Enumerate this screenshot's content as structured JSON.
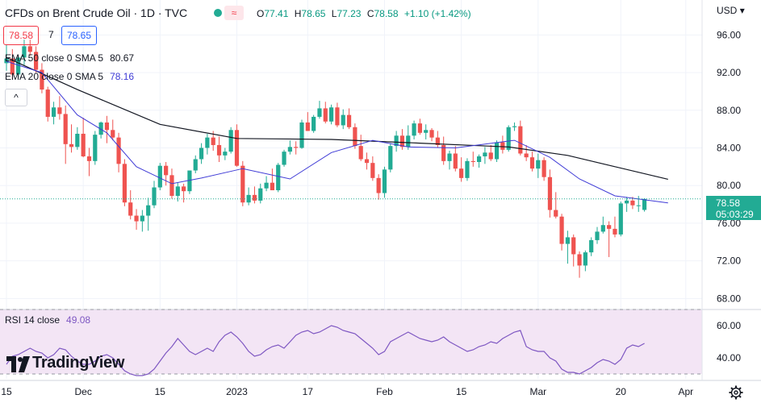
{
  "header": {
    "symbol_title": "CFDs on Brent Crude Oil · 1D · TVC",
    "ohlc": {
      "o_label": "O",
      "o": "77.41",
      "h_label": "H",
      "h": "78.65",
      "l_label": "L",
      "l": "77.23",
      "c_label": "C",
      "c": "78.58",
      "change": "+1.10 (+1.42%)"
    },
    "sell": "78.58",
    "spread": "7",
    "buy": "78.65",
    "status_icon": "market-open-dot",
    "compare_icon": "≈",
    "currency": "USD",
    "currency_chevron": "▾"
  },
  "indicators": [
    {
      "label": "EMA 50 close 0 SMA 5",
      "value": "80.67",
      "color": "#131722"
    },
    {
      "label": "EMA 20 close 0 SMA 5",
      "value": "78.16",
      "color": "#3f3bd6"
    }
  ],
  "collapse_icon": "^",
  "price_tag": {
    "price": "78.58",
    "countdown": "05:03:29",
    "color": "#22ab94"
  },
  "rsi": {
    "label": "RSI 14 close",
    "value": "49.08",
    "color": "#7e57c2"
  },
  "branding": {
    "name": "TradingView"
  },
  "colors": {
    "up": "#22ab94",
    "down": "#ef5350",
    "ema50": "#131722",
    "ema20": "#3f3bd6",
    "rsi": "#7e57c2",
    "rsi_band": "#f3e5f5"
  },
  "chart_data": [
    {
      "type": "candlestick",
      "title": "CFDs on Brent Crude Oil · 1D · TVC",
      "ylim": [
        67,
        98
      ],
      "ytick_labels": [
        "96.00",
        "92.00",
        "88.00",
        "84.00",
        "80.00",
        "76.00",
        "72.00",
        "68.00"
      ],
      "yticks": [
        96,
        92,
        88,
        84,
        80,
        76,
        72,
        68
      ],
      "xtick_labels": [
        "15",
        "Dec",
        "15",
        "2023",
        "17",
        "Feb",
        "15",
        "Mar",
        "20",
        "Apr"
      ],
      "xtick_index": [
        0,
        13,
        26,
        39,
        51,
        64,
        77,
        90,
        104,
        115
      ],
      "ohlc": [
        [
          93,
          95,
          92.2,
          93.5
        ],
        [
          93.5,
          94.5,
          91.3,
          91.8
        ],
        [
          91.8,
          93.8,
          91.5,
          93.6
        ],
        [
          93.6,
          95.5,
          92.8,
          94.8
        ],
        [
          94.8,
          95.5,
          93.8,
          94.2
        ],
        [
          94.2,
          94.8,
          92,
          92.3
        ],
        [
          92.3,
          93,
          89.8,
          90.2
        ],
        [
          90.2,
          90.5,
          86.8,
          87.3
        ],
        [
          87.3,
          88.9,
          86.5,
          88.3
        ],
        [
          88.3,
          89.5,
          87,
          87.6
        ],
        [
          87.6,
          88.5,
          82.3,
          84.4
        ],
        [
          84.4,
          86.5,
          83.5,
          84.1
        ],
        [
          84.1,
          86.2,
          83.8,
          85.5
        ],
        [
          85.5,
          87.2,
          83,
          83.1
        ],
        [
          83.1,
          84,
          81,
          82.6
        ],
        [
          82.6,
          85.8,
          82.2,
          85.4
        ],
        [
          85.4,
          86.8,
          85,
          86.7
        ],
        [
          86.7,
          87.4,
          84.5,
          85.9
        ],
        [
          85.9,
          87,
          84.8,
          85.1
        ],
        [
          85.1,
          85.6,
          81.4,
          82.3
        ],
        [
          82.3,
          82.8,
          77.8,
          78.2
        ],
        [
          78.2,
          79.5,
          76.4,
          76.8
        ],
        [
          76.8,
          77.5,
          75.3,
          76.2
        ],
        [
          76.2,
          77.4,
          75.1,
          76.8
        ],
        [
          76.8,
          78.7,
          75.2,
          77.9
        ],
        [
          77.9,
          80.5,
          77.6,
          79.8
        ],
        [
          79.8,
          82.4,
          79.5,
          82.1
        ],
        [
          82.1,
          82.5,
          80,
          81.1
        ],
        [
          81.1,
          81.8,
          78.6,
          78.9
        ],
        [
          78.9,
          80.3,
          78.3,
          79.9
        ],
        [
          79.9,
          80.2,
          78.2,
          79.4
        ],
        [
          79.4,
          81.5,
          79.1,
          81.6
        ],
        [
          81.6,
          83.2,
          81.3,
          82.8
        ],
        [
          82.8,
          84.5,
          82.3,
          84
        ],
        [
          84,
          85.5,
          83.3,
          85.1
        ],
        [
          85.1,
          85.8,
          83.7,
          84.3
        ],
        [
          84.3,
          85.2,
          82.5,
          83.2
        ],
        [
          83.2,
          84,
          82.7,
          83.6
        ],
        [
          83.6,
          86.2,
          83.4,
          85.9
        ],
        [
          85.9,
          86.5,
          82,
          82.1
        ],
        [
          82.1,
          82.6,
          77.8,
          78.2
        ],
        [
          78.2,
          79.8,
          77.9,
          79
        ],
        [
          79,
          79.9,
          78.1,
          78.4
        ],
        [
          78.4,
          80.2,
          78.1,
          79.7
        ],
        [
          79.7,
          81,
          79.4,
          80.3
        ],
        [
          80.3,
          81.8,
          79.5,
          79.5
        ],
        [
          79.5,
          82.4,
          79.3,
          82.2
        ],
        [
          82.2,
          83.8,
          82,
          83.6
        ],
        [
          83.6,
          84.8,
          83.3,
          84.1
        ],
        [
          84.1,
          84.7,
          83.3,
          84
        ],
        [
          84,
          87,
          83.9,
          86.7
        ],
        [
          86.7,
          87.8,
          85.8,
          85.8
        ],
        [
          85.8,
          87.5,
          85.6,
          87.3
        ],
        [
          87.3,
          89,
          87.1,
          88.2
        ],
        [
          88.2,
          88.9,
          86.6,
          86.8
        ],
        [
          86.8,
          88.6,
          86.5,
          88.3
        ],
        [
          88.3,
          88.8,
          86.2,
          86.4
        ],
        [
          86.4,
          88.1,
          86,
          87.5
        ],
        [
          87.5,
          88.2,
          86,
          86.2
        ],
        [
          86.2,
          86.6,
          83.9,
          84.2
        ],
        [
          84.2,
          85.4,
          82.6,
          82.8
        ],
        [
          82.8,
          83.5,
          81.7,
          82.4
        ],
        [
          82.4,
          83.1,
          80.5,
          80.8
        ],
        [
          80.8,
          81.2,
          78.5,
          79.2
        ],
        [
          79.2,
          82,
          78.7,
          81.7
        ],
        [
          81.7,
          84.5,
          81.4,
          84.2
        ],
        [
          84.2,
          85.8,
          83.6,
          85.3
        ],
        [
          85.3,
          86,
          83.8,
          84.1
        ],
        [
          84.1,
          86.4,
          83.8,
          85.3
        ],
        [
          85.3,
          86.9,
          84.9,
          86.6
        ],
        [
          86.6,
          87.1,
          85.4,
          85.6
        ],
        [
          85.6,
          86.5,
          84.9,
          85.9
        ],
        [
          85.9,
          86.1,
          84.7,
          85.1
        ],
        [
          85.1,
          85.8,
          84,
          84.3
        ],
        [
          84.3,
          85.2,
          82.2,
          82.6
        ],
        [
          82.6,
          83.7,
          81.7,
          83.4
        ],
        [
          83.4,
          84.2,
          81.5,
          81.8
        ],
        [
          81.8,
          83,
          80.4,
          80.8
        ],
        [
          80.8,
          82.9,
          80.5,
          82.6
        ],
        [
          82.6,
          83.6,
          82,
          82.5
        ],
        [
          82.5,
          83.3,
          81.9,
          83.1
        ],
        [
          83.1,
          84.1,
          82.3,
          83.5
        ],
        [
          83.5,
          84.3,
          82.6,
          82.8
        ],
        [
          82.8,
          84.8,
          82.5,
          84.6
        ],
        [
          84.6,
          85.3,
          83.4,
          83.8
        ],
        [
          83.8,
          86.4,
          83.6,
          86.2
        ],
        [
          86.2,
          86.7,
          85.8,
          86.3
        ],
        [
          86.3,
          86.9,
          83.2,
          83.4
        ],
        [
          83.4,
          84.3,
          82.6,
          83
        ],
        [
          83,
          83.6,
          81.5,
          81.8
        ],
        [
          81.8,
          83.4,
          80.8,
          82.7
        ],
        [
          82.7,
          83,
          80.5,
          80.9
        ],
        [
          80.9,
          81.7,
          76.6,
          77.4
        ],
        [
          77.4,
          79.3,
          76.5,
          76.7
        ],
        [
          76.7,
          77,
          73.1,
          73.8
        ],
        [
          73.8,
          75.2,
          71.7,
          74.5
        ],
        [
          74.5,
          74.8,
          71.4,
          72.7
        ],
        [
          72.7,
          73,
          70.2,
          71.5
        ],
        [
          71.5,
          73.1,
          70.9,
          72.9
        ],
        [
          72.9,
          74.5,
          72.5,
          74.2
        ],
        [
          74.2,
          75.6,
          73.8,
          75.1
        ],
        [
          75.1,
          76.7,
          74.9,
          75.8
        ],
        [
          75.8,
          76.2,
          72.4,
          75.4
        ],
        [
          75.4,
          76.7,
          74.5,
          74.8
        ],
        [
          74.8,
          78.3,
          74.6,
          78.1
        ],
        [
          78.1,
          78.8,
          77.2,
          78.4
        ],
        [
          78.4,
          78.8,
          77.5,
          77.9
        ],
        [
          77.9,
          78.9,
          77.2,
          77.9
        ],
        [
          77.41,
          78.65,
          77.23,
          78.58
        ]
      ],
      "ema50": [
        [
          0,
          93.6
        ],
        [
          12,
          90.2
        ],
        [
          26,
          86.5
        ],
        [
          39,
          85
        ],
        [
          55,
          84.9
        ],
        [
          70,
          84.5
        ],
        [
          85,
          84.1
        ],
        [
          95,
          83.2
        ],
        [
          103,
          82
        ],
        [
          112,
          80.67
        ]
      ],
      "ema20": [
        [
          0,
          93.2
        ],
        [
          6,
          92
        ],
        [
          12,
          87.5
        ],
        [
          17,
          85.6
        ],
        [
          22,
          82
        ],
        [
          28,
          80.2
        ],
        [
          33,
          80.8
        ],
        [
          40,
          81.8
        ],
        [
          48,
          80.7
        ],
        [
          55,
          83.5
        ],
        [
          62,
          84.8
        ],
        [
          68,
          84.1
        ],
        [
          76,
          84
        ],
        [
          86,
          84.8
        ],
        [
          92,
          83
        ],
        [
          97,
          80.7
        ],
        [
          103,
          78.9
        ],
        [
          112,
          78.16
        ]
      ],
      "last_price": 78.58
    },
    {
      "type": "line",
      "name": "RSI 14 close",
      "ylim": [
        27,
        69
      ],
      "ytick_labels": [
        "60.00",
        "40.00"
      ],
      "yticks": [
        60,
        40
      ],
      "upper_band": 70,
      "lower_band": 30,
      "values": [
        36,
        41,
        42,
        44,
        46,
        44,
        43,
        40,
        42,
        46,
        45,
        41,
        38,
        36,
        36,
        38,
        41,
        42,
        40,
        36,
        32,
        30,
        29,
        29,
        30,
        33,
        38,
        43,
        47,
        52,
        48,
        44,
        42,
        44,
        46,
        44,
        50,
        54,
        56,
        53,
        49,
        44,
        41,
        42,
        45,
        47,
        48,
        46,
        50,
        54,
        56,
        57,
        55,
        56,
        58,
        60,
        59,
        57,
        56,
        55,
        52,
        49,
        46,
        42,
        44,
        50,
        52,
        54,
        56,
        54,
        52,
        51,
        50,
        51,
        53,
        50,
        48,
        46,
        44,
        45,
        47,
        48,
        50,
        49,
        52,
        54,
        56,
        57,
        47,
        45,
        44,
        44,
        40,
        38,
        33,
        31,
        31,
        30,
        32,
        34,
        37,
        39,
        38,
        36,
        39,
        46,
        48,
        47,
        49
      ]
    }
  ]
}
